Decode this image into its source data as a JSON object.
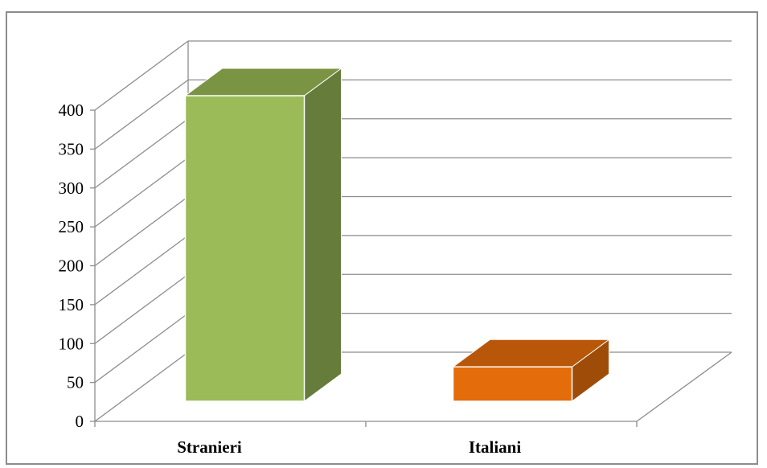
{
  "chart_data": {
    "type": "bar",
    "style": "3d-column",
    "categories": [
      "Stranieri",
      "Italiani"
    ],
    "values": [
      400,
      45
    ],
    "ylim": [
      0,
      400
    ],
    "ytick_labels": [
      "0",
      "50",
      "100",
      "150",
      "200",
      "250",
      "300",
      "350",
      "400"
    ],
    "title": "",
    "xlabel": "",
    "ylabel": "",
    "grid": true,
    "legend": "none",
    "colors": {
      "Stranieri": {
        "front": "#9bbb59",
        "side": "#667c3b",
        "top": "#7a9444"
      },
      "Italiani": {
        "front": "#e46c0a",
        "side": "#9e4c07",
        "top": "#b85709"
      }
    }
  }
}
